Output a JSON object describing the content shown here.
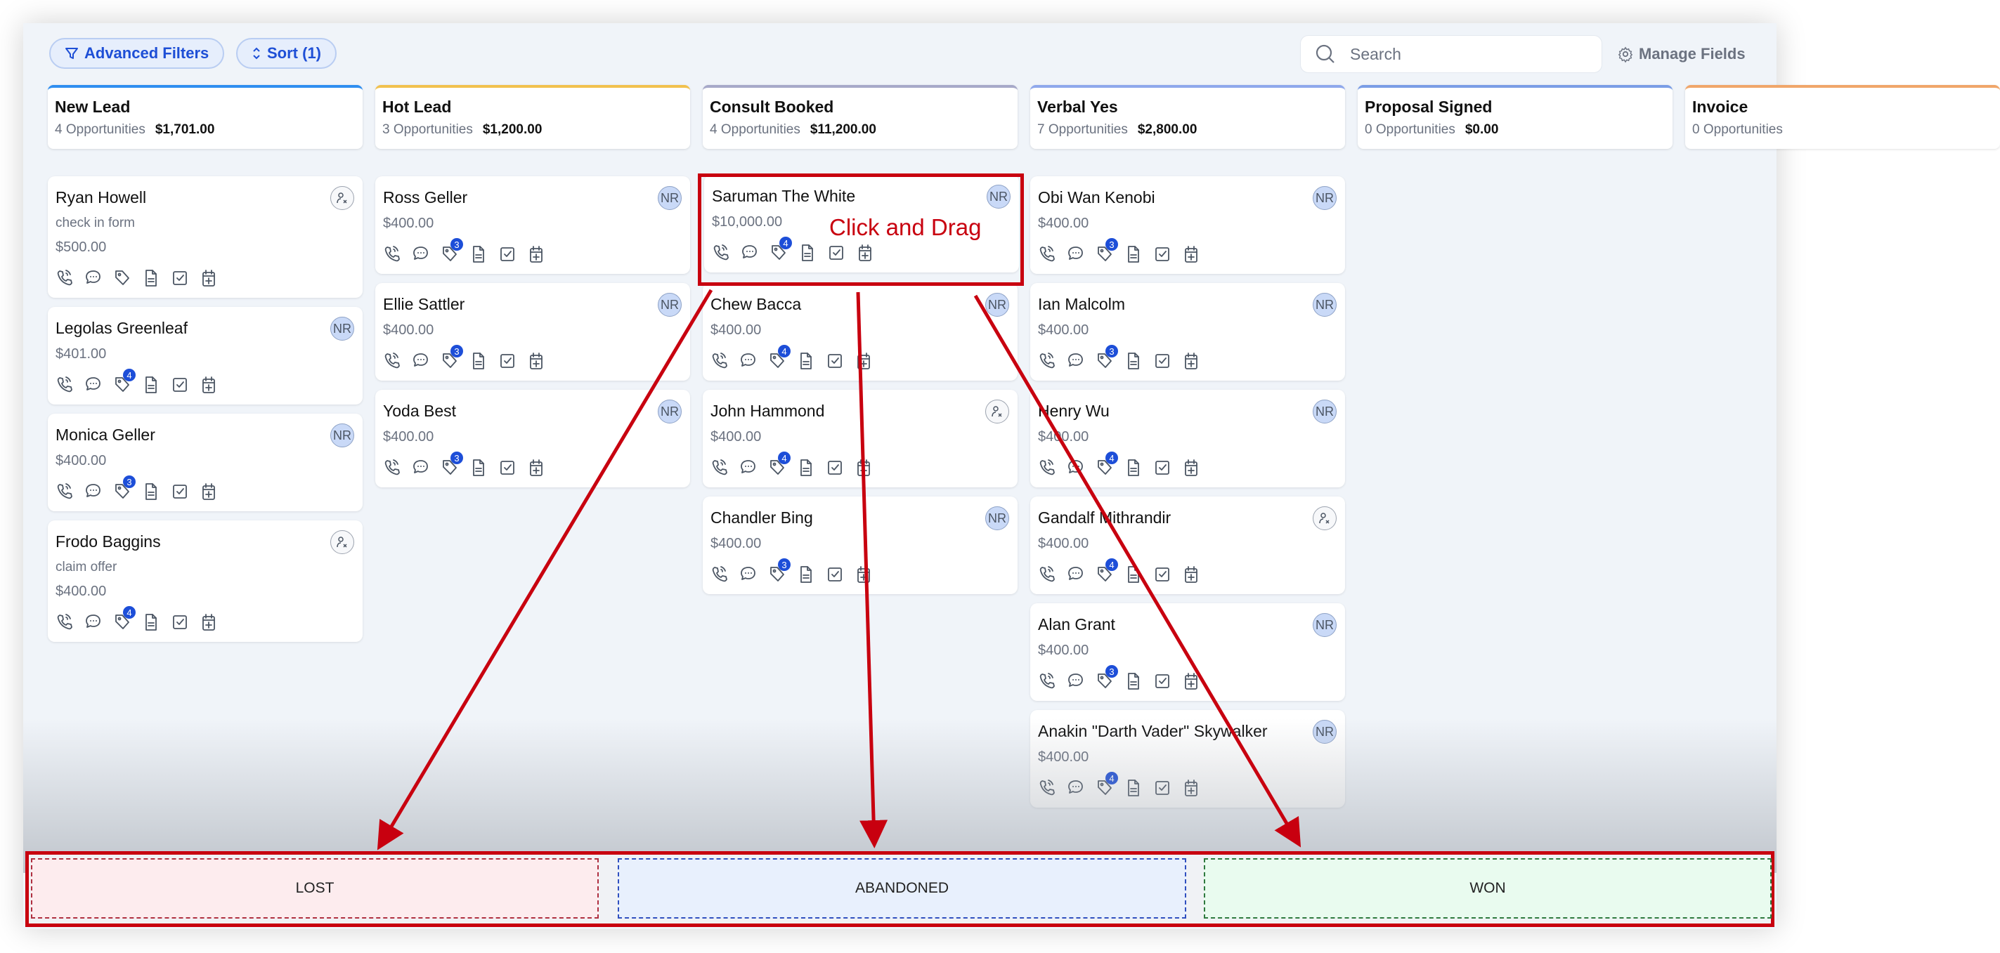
{
  "toolbar": {
    "advanced_filters": "Advanced Filters",
    "sort": "Sort (1)",
    "search_placeholder": "Search",
    "manage_fields": "Manage Fields"
  },
  "colors": {
    "accent": "#1e4fd6",
    "badge": "#1d4ed8",
    "annotation": "#c8000f"
  },
  "columns": [
    {
      "title": "New Lead",
      "count": "4 Opportunities",
      "total": "$1,701.00",
      "color": "#2f8ef0",
      "cards": [
        {
          "name": "Ryan Howell",
          "note": "check in form",
          "amount": "$500.00",
          "owner": "unassigned",
          "badge": null
        },
        {
          "name": "Legolas Greenleaf",
          "amount": "$401.00",
          "owner": "NR",
          "badge": "4"
        },
        {
          "name": "Monica Geller",
          "amount": "$400.00",
          "owner": "NR",
          "badge": "3"
        },
        {
          "name": "Frodo Baggins",
          "note": "claim offer",
          "amount": "$400.00",
          "owner": "unassigned",
          "badge": "4"
        }
      ]
    },
    {
      "title": "Hot Lead",
      "count": "3 Opportunities",
      "total": "$1,200.00",
      "color": "#f1c14e",
      "cards": [
        {
          "name": "Ross Geller",
          "amount": "$400.00",
          "owner": "NR",
          "badge": "3"
        },
        {
          "name": "Ellie Sattler",
          "amount": "$400.00",
          "owner": "NR",
          "badge": "3"
        },
        {
          "name": "Yoda Best",
          "amount": "$400.00",
          "owner": "NR",
          "badge": "3"
        }
      ]
    },
    {
      "title": "Consult Booked",
      "count": "4 Opportunities",
      "total": "$11,200.00",
      "color": "#a7a9c9",
      "cards": [
        {
          "name": "Saruman The White",
          "amount": "$10,000.00",
          "owner": "NR",
          "badge": "4"
        },
        {
          "name": "Chew Bacca",
          "amount": "$400.00",
          "owner": "NR",
          "badge": "4"
        },
        {
          "name": "John Hammond",
          "amount": "$400.00",
          "owner": "unassigned",
          "badge": "4"
        },
        {
          "name": "Chandler Bing",
          "amount": "$400.00",
          "owner": "NR",
          "badge": "3"
        }
      ]
    },
    {
      "title": "Verbal Yes",
      "count": "7 Opportunities",
      "total": "$2,800.00",
      "color": "#8fa8ec",
      "cards": [
        {
          "name": "Obi Wan Kenobi",
          "amount": "$400.00",
          "owner": "NR",
          "badge": "3"
        },
        {
          "name": "Ian Malcolm",
          "amount": "$400.00",
          "owner": "NR",
          "badge": "3"
        },
        {
          "name": "Henry Wu",
          "amount": "$400.00",
          "owner": "NR",
          "badge": "4"
        },
        {
          "name": "Gandalf Mithrandir",
          "amount": "$400.00",
          "owner": "unassigned",
          "badge": "4"
        },
        {
          "name": "Alan Grant",
          "amount": "$400.00",
          "owner": "NR",
          "badge": "3"
        },
        {
          "name": "Anakin \"Darth Vader\" Skywalker",
          "amount": "$400.00",
          "owner": "NR",
          "badge": "4"
        }
      ]
    },
    {
      "title": "Proposal Signed",
      "count": "0 Opportunities",
      "total": "$0.00",
      "color": "#7a9de6",
      "cards": []
    },
    {
      "title": "Invoice",
      "count": "0 Opportunities",
      "total": "",
      "color": "#f0a66a",
      "cards": []
    }
  ],
  "annotation": {
    "label": "Click and Drag"
  },
  "drop_zones": [
    {
      "label": "LOST",
      "bg": "#fdecee",
      "border": "#b03040"
    },
    {
      "label": "ABANDONED",
      "bg": "#e8f0fd",
      "border": "#3050c0"
    },
    {
      "label": "WON",
      "bg": "#e9fbef",
      "border": "#2f7a3f"
    }
  ]
}
